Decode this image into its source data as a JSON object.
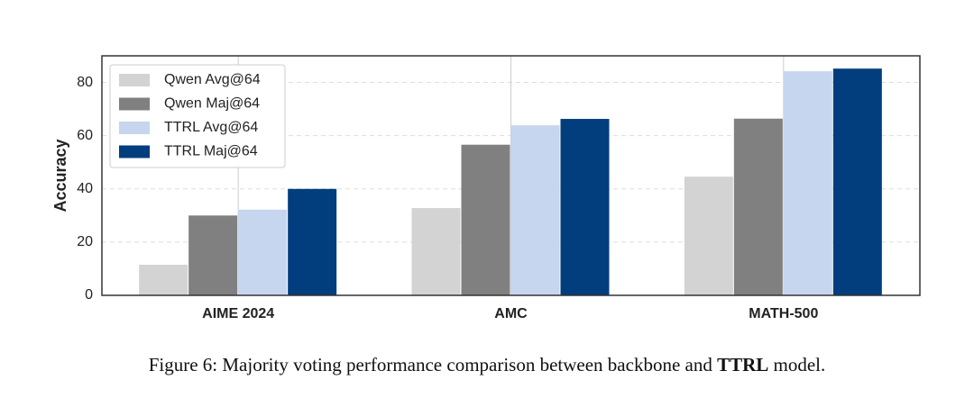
{
  "chart_data": {
    "type": "bar",
    "y_label": "Accuracy",
    "categories": [
      "AIME 2024",
      "AMC",
      "MATH-500"
    ],
    "series": [
      {
        "name": "Qwen Avg@64",
        "color": "#d3d3d3",
        "values": [
          11.5,
          32.8,
          44.6
        ]
      },
      {
        "name": "Qwen Maj@64",
        "color": "#808080",
        "values": [
          30.0,
          56.6,
          66.4
        ]
      },
      {
        "name": "TTRL Avg@64",
        "color": "#c6d6ee",
        "values": [
          32.2,
          63.9,
          84.2
        ]
      },
      {
        "name": "TTRL Maj@64",
        "color": "#023e7d",
        "values": [
          40.0,
          66.3,
          85.2
        ]
      }
    ],
    "ylim": [
      0,
      90
    ],
    "yticks": [
      0,
      20,
      40,
      60,
      80
    ],
    "grid": true,
    "legend": "upper left"
  },
  "caption": {
    "prefix": "Figure 6: Majority voting performance comparison between backbone and ",
    "bold": "TTRL",
    "suffix": " model."
  }
}
